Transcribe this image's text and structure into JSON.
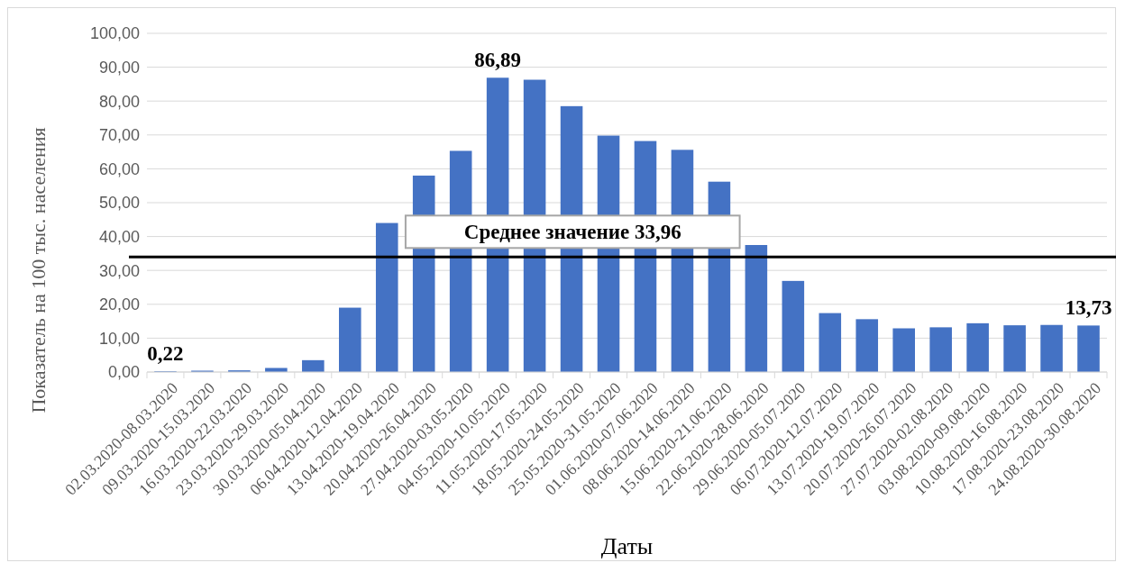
{
  "chart_data": {
    "type": "bar",
    "xlabel": "Даты",
    "ylabel": "Показатель на 100 тыс. населения",
    "categories": [
      "02.03.2020-08.03.2020",
      "09.03.2020-15.03.2020",
      "16.03.2020-22.03.2020",
      "23.03.2020-29.03.2020",
      "30.03.2020-05.04.2020",
      "06.04.2020-12.04.2020",
      "13.04.2020-19.04.2020",
      "20.04.2020-26.04.2020",
      "27.04.2020-03.05.2020",
      "04.05.2020-10.05.2020",
      "11.05.2020-17.05.2020",
      "18.05.2020-24.05.2020",
      "25.05.2020-31.05.2020",
      "01.06.2020-07.06.2020",
      "08.06.2020-14.06.2020",
      "15.06.2020-21.06.2020",
      "22.06.2020-28.06.2020",
      "29.06.2020-05.07.2020",
      "06.07.2020-12.07.2020",
      "13.07.2020-19.07.2020",
      "20.07.2020-26.07.2020",
      "27.07.2020-02.08.2020",
      "03.08.2020-09.08.2020",
      "10.08.2020-16.08.2020",
      "17.08.2020-23.08.2020",
      "24.08.2020-30.08.2020"
    ],
    "values": [
      0.22,
      0.4,
      0.5,
      1.2,
      3.5,
      19.0,
      44,
      58.0,
      65.3,
      86.89,
      86.3,
      78.5,
      69.8,
      68.2,
      65.6,
      56.2,
      37.5,
      26.9,
      17.4,
      15.6,
      12.9,
      13.2,
      14.4,
      13.8,
      13.9,
      13.73
    ],
    "value_labels": [
      "0,22",
      null,
      null,
      null,
      null,
      null,
      null,
      null,
      null,
      "86,89",
      null,
      null,
      null,
      null,
      null,
      null,
      null,
      null,
      null,
      null,
      null,
      null,
      null,
      null,
      null,
      "13,73"
    ],
    "color": "#4472c4",
    "ylim": [
      0,
      100
    ],
    "yticks": [
      {
        "value": 0,
        "label": "0,00"
      },
      {
        "value": 10,
        "label": "10,00"
      },
      {
        "value": 20,
        "label": "20,00"
      },
      {
        "value": 30,
        "label": "30,00"
      },
      {
        "value": 40,
        "label": "40,00"
      },
      {
        "value": 50,
        "label": "50,00"
      },
      {
        "value": 60,
        "label": "60,00"
      },
      {
        "value": 70,
        "label": "70,00"
      },
      {
        "value": 80,
        "label": "80,00"
      },
      {
        "value": 90,
        "label": "90,00"
      },
      {
        "value": 100,
        "label": "100,00"
      }
    ],
    "grid": "y",
    "ref_lines": [
      {
        "axis": "y",
        "value": 33.96,
        "label": "Среднее значение 33,96",
        "color": "#000000"
      }
    ]
  }
}
